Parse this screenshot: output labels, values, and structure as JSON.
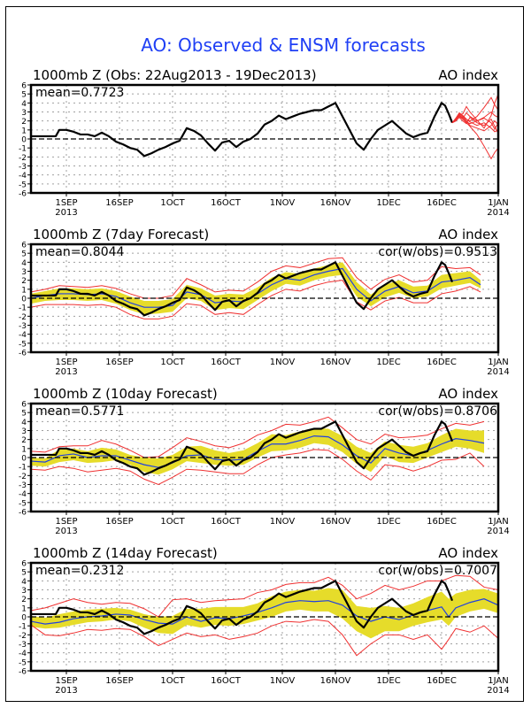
{
  "page_title": "AO: Observed & ENSM forecasts",
  "colors": {
    "title": "#1f3ff5",
    "observed": "#000000",
    "ensemble_member": "#f03030",
    "spread_band": "#e6dc2a",
    "ensemble_mean": "#2040e0",
    "bounds": "#f03030",
    "grid": "#a0a0a0"
  },
  "chart_data": [
    {
      "type": "line",
      "title": "1000mb Z (Obs: 22Aug2013 - 19Dec2013)",
      "right_label": "AO index",
      "annotation_left": "mean=0.7723",
      "annotation_right": "",
      "xlabel": "",
      "ylabel": "",
      "ylim": [
        -6,
        6
      ],
      "yticks": [
        "6",
        "5",
        "4",
        "3",
        "2",
        "1",
        "0",
        "-1",
        "-2",
        "-3",
        "-4",
        "-5",
        "-6"
      ],
      "x_domain_days": [
        0,
        132
      ],
      "x_ticks": [
        {
          "day": 10,
          "label": "1SEP",
          "sub": "2013"
        },
        {
          "day": 25,
          "label": "16SEP",
          "sub": ""
        },
        {
          "day": 40,
          "label": "1OCT",
          "sub": ""
        },
        {
          "day": 55,
          "label": "16OCT",
          "sub": ""
        },
        {
          "day": 71,
          "label": "1NOV",
          "sub": ""
        },
        {
          "day": 86,
          "label": "16NOV",
          "sub": ""
        },
        {
          "day": 101,
          "label": "1DEC",
          "sub": ""
        },
        {
          "day": 116,
          "label": "16DEC",
          "sub": ""
        },
        {
          "day": 132,
          "label": "1JAN",
          "sub": "2014"
        }
      ],
      "grid": true,
      "observed": {
        "name": "Observed AO",
        "x": [
          0,
          4,
          7,
          8,
          10,
          12,
          14,
          16,
          18,
          20,
          22,
          24,
          26,
          28,
          30,
          32,
          34,
          36,
          38,
          40,
          42,
          44,
          46,
          48,
          50,
          52,
          54,
          56,
          58,
          60,
          62,
          64,
          66,
          68,
          70,
          72,
          74,
          76,
          78,
          80,
          82,
          84,
          86,
          88,
          90,
          92,
          94,
          96,
          98,
          100,
          102,
          104,
          106,
          108,
          110,
          112,
          114,
          116,
          117,
          118,
          119
        ],
        "y": [
          0.3,
          0.3,
          0.3,
          1.0,
          1.0,
          0.8,
          0.5,
          0.5,
          0.3,
          0.7,
          0.3,
          -0.3,
          -0.6,
          -1.0,
          -1.2,
          -1.9,
          -1.6,
          -1.2,
          -0.9,
          -0.5,
          -0.2,
          1.2,
          0.9,
          0.4,
          -0.5,
          -1.3,
          -0.4,
          -0.2,
          -0.9,
          -0.3,
          0.0,
          0.6,
          1.6,
          2.0,
          2.6,
          2.2,
          2.5,
          2.8,
          3.0,
          3.2,
          3.2,
          3.6,
          4.0,
          2.5,
          1.0,
          -0.5,
          -1.2,
          0.0,
          1.0,
          1.5,
          2.0,
          1.3,
          0.6,
          0.2,
          0.5,
          0.7,
          2.5,
          4.0,
          3.7,
          2.8,
          1.8
        ]
      },
      "ensemble_members": [
        {
          "x": [
            119,
            120,
            121,
            122,
            123,
            124,
            126,
            128,
            130,
            131,
            132
          ],
          "y": [
            1.8,
            2.2,
            2.7,
            2.3,
            2.9,
            2.5,
            2.0,
            2.4,
            3.0,
            2.6,
            2.4
          ]
        },
        {
          "x": [
            119,
            120,
            121,
            122,
            123,
            124,
            126,
            128,
            130,
            131,
            132
          ],
          "y": [
            1.8,
            2.1,
            2.6,
            2.4,
            2.2,
            1.9,
            1.5,
            1.8,
            1.2,
            0.8,
            1.0
          ]
        },
        {
          "x": [
            119,
            120,
            121,
            122,
            123,
            124,
            126,
            128,
            130,
            131,
            132
          ],
          "y": [
            1.8,
            2.0,
            2.8,
            2.5,
            2.0,
            1.5,
            1.2,
            0.9,
            1.5,
            2.0,
            1.6
          ]
        },
        {
          "x": [
            119,
            120,
            121,
            122,
            123,
            124,
            126,
            128,
            130,
            131,
            132
          ],
          "y": [
            1.8,
            2.3,
            2.9,
            2.6,
            2.2,
            2.0,
            2.5,
            3.5,
            4.6,
            3.8,
            3.2
          ]
        },
        {
          "x": [
            119,
            120,
            121,
            122,
            123,
            124,
            126,
            128,
            130,
            131,
            132
          ],
          "y": [
            1.8,
            2.2,
            2.5,
            2.2,
            1.8,
            1.4,
            0.5,
            -0.8,
            -2.2,
            -1.5,
            -1.0
          ]
        },
        {
          "x": [
            119,
            120,
            121,
            122,
            123,
            124,
            126,
            128,
            130,
            131,
            132
          ],
          "y": [
            1.8,
            2.0,
            2.4,
            2.0,
            1.7,
            2.4,
            1.8,
            1.5,
            2.2,
            1.4,
            0.6
          ]
        },
        {
          "x": [
            119,
            120,
            121,
            122,
            123,
            124,
            126,
            128,
            130,
            131,
            132
          ],
          "y": [
            1.8,
            2.1,
            2.7,
            2.8,
            3.6,
            3.0,
            2.1,
            1.2,
            2.6,
            4.0,
            5.0
          ]
        },
        {
          "x": [
            119,
            120,
            121,
            122,
            123,
            124,
            126,
            128,
            130,
            131,
            132
          ],
          "y": [
            1.8,
            2.2,
            2.6,
            2.3,
            1.9,
            1.7,
            2.0,
            2.3,
            1.8,
            1.1,
            1.8
          ]
        }
      ]
    },
    {
      "type": "line",
      "title": "1000mb Z (7day Forecast)",
      "right_label": "AO index",
      "annotation_left": "mean=0.8044",
      "annotation_right": "cor(w/obs)=0.9513",
      "ylim": [
        -6,
        6
      ],
      "x_domain_days": [
        0,
        132
      ],
      "forecast": {
        "x": [
          0,
          4,
          8,
          12,
          16,
          20,
          24,
          28,
          32,
          36,
          40,
          44,
          48,
          52,
          56,
          60,
          64,
          68,
          72,
          76,
          80,
          84,
          88,
          92,
          96,
          100,
          104,
          108,
          112,
          116,
          120,
          124,
          127
        ],
        "mean": [
          0.0,
          0.3,
          0.5,
          0.5,
          0.4,
          0.5,
          0.2,
          -0.5,
          -1.0,
          -1.0,
          -0.8,
          0.7,
          0.4,
          -0.5,
          -0.3,
          -0.4,
          0.5,
          1.5,
          2.2,
          2.0,
          2.6,
          3.0,
          3.3,
          1.0,
          -0.3,
          0.8,
          1.3,
          0.6,
          0.8,
          1.8,
          2.0,
          2.3,
          1.5
        ],
        "lower": [
          -0.6,
          -0.3,
          -0.2,
          -0.2,
          -0.3,
          -0.2,
          -0.6,
          -1.3,
          -1.8,
          -1.7,
          -1.5,
          0.0,
          -0.3,
          -1.3,
          -1.1,
          -1.2,
          -0.2,
          0.8,
          1.6,
          1.4,
          2.0,
          2.4,
          2.6,
          0.2,
          -0.9,
          0.1,
          0.6,
          0.0,
          0.2,
          1.1,
          1.4,
          1.7,
          1.1
        ],
        "upper": [
          0.5,
          0.8,
          1.1,
          1.1,
          1.0,
          1.1,
          0.8,
          0.2,
          -0.3,
          -0.3,
          -0.1,
          1.5,
          1.1,
          0.3,
          0.5,
          0.4,
          1.2,
          2.3,
          2.9,
          2.7,
          3.3,
          3.7,
          4.0,
          1.8,
          0.4,
          1.5,
          2.0,
          1.3,
          1.4,
          2.6,
          2.8,
          3.0,
          2.0
        ],
        "min": [
          -1.0,
          -0.7,
          -0.7,
          -0.7,
          -0.8,
          -0.7,
          -1.0,
          -1.8,
          -2.3,
          -2.3,
          -2.0,
          -0.6,
          -0.8,
          -1.8,
          -1.6,
          -1.8,
          -0.7,
          0.3,
          1.0,
          0.8,
          1.4,
          1.8,
          2.0,
          -0.4,
          -1.3,
          -0.3,
          0.1,
          -0.5,
          -0.5,
          0.5,
          0.8,
          1.3,
          0.7
        ],
        "max": [
          0.7,
          1.0,
          1.4,
          1.3,
          1.2,
          1.4,
          1.1,
          0.5,
          0.0,
          0.0,
          0.3,
          2.2,
          1.5,
          0.7,
          0.9,
          0.8,
          1.8,
          3.0,
          3.6,
          3.4,
          3.9,
          4.4,
          4.5,
          2.3,
          1.0,
          2.1,
          2.6,
          1.8,
          2.0,
          3.5,
          3.3,
          3.4,
          2.6
        ]
      }
    },
    {
      "type": "line",
      "title": "1000mb Z (10day Forecast)",
      "right_label": "AO index",
      "annotation_left": "mean=0.5771",
      "annotation_right": "cor(w/obs)=0.8706",
      "ylim": [
        -6,
        6
      ],
      "x_domain_days": [
        0,
        132
      ],
      "forecast": {
        "x": [
          0,
          4,
          8,
          12,
          16,
          20,
          24,
          28,
          32,
          36,
          40,
          44,
          48,
          52,
          56,
          60,
          64,
          68,
          72,
          76,
          80,
          84,
          88,
          92,
          96,
          100,
          104,
          108,
          112,
          116,
          120,
          124,
          128
        ],
        "mean": [
          -0.4,
          -0.5,
          0.2,
          0.4,
          0.0,
          0.2,
          0.2,
          -0.3,
          -0.8,
          -1.1,
          -0.6,
          0.2,
          0.3,
          -0.2,
          -0.3,
          -0.2,
          0.7,
          1.5,
          1.5,
          1.9,
          2.4,
          2.3,
          1.4,
          0.2,
          -0.6,
          1.0,
          0.5,
          0.2,
          0.8,
          1.5,
          2.1,
          1.9,
          1.6
        ],
        "lower": [
          -0.9,
          -1.0,
          -0.5,
          -0.3,
          -0.6,
          -0.5,
          -0.3,
          -0.8,
          -1.6,
          -1.9,
          -1.3,
          -0.4,
          -0.6,
          -0.8,
          -0.9,
          -0.8,
          0.0,
          0.7,
          0.8,
          1.1,
          1.6,
          1.4,
          0.6,
          -0.7,
          -1.6,
          0.2,
          -0.5,
          -0.6,
          0.0,
          0.6,
          1.2,
          1.0,
          0.5
        ],
        "upper": [
          0.0,
          -0.1,
          0.9,
          1.0,
          0.7,
          1.1,
          0.9,
          0.3,
          0.0,
          -0.1,
          0.3,
          1.2,
          1.3,
          0.8,
          0.5,
          0.8,
          1.6,
          2.6,
          2.5,
          2.9,
          3.3,
          3.2,
          2.4,
          1.2,
          0.5,
          1.8,
          1.4,
          1.2,
          1.6,
          2.5,
          3.2,
          3.0,
          3.0
        ],
        "min": [
          -1.3,
          -1.4,
          -1.0,
          -1.2,
          -1.6,
          -1.4,
          -1.2,
          -1.5,
          -2.4,
          -3.0,
          -2.2,
          -1.3,
          -1.4,
          -1.6,
          -1.8,
          -1.8,
          -0.8,
          0.0,
          0.3,
          0.5,
          0.9,
          0.8,
          -0.2,
          -1.5,
          -2.5,
          -0.8,
          -1.0,
          -1.5,
          -1.0,
          -0.3,
          -0.2,
          0.5,
          -1.0
        ],
        "max": [
          0.7,
          0.6,
          1.2,
          1.3,
          1.3,
          1.9,
          1.5,
          0.8,
          0.0,
          0.1,
          1.1,
          2.2,
          1.8,
          1.3,
          1.1,
          1.6,
          2.5,
          3.0,
          3.7,
          3.6,
          4.0,
          4.5,
          3.3,
          2.0,
          1.5,
          2.6,
          2.2,
          2.3,
          2.5,
          3.2,
          3.8,
          3.6,
          4.0
        ]
      }
    },
    {
      "type": "line",
      "title": "1000mb Z (14day Forecast)",
      "right_label": "AO index",
      "annotation_left": "mean=0.2312",
      "annotation_right": "cor(w/obs)=0.7007",
      "ylim": [
        -6,
        6
      ],
      "x_domain_days": [
        0,
        132
      ],
      "forecast": {
        "x": [
          0,
          4,
          8,
          12,
          16,
          20,
          24,
          28,
          32,
          36,
          40,
          44,
          48,
          52,
          56,
          60,
          64,
          68,
          72,
          76,
          80,
          84,
          88,
          92,
          96,
          100,
          104,
          108,
          112,
          116,
          118,
          120,
          124,
          128,
          132
        ],
        "mean": [
          -0.5,
          -0.8,
          -0.6,
          -0.2,
          0.0,
          0.1,
          0.3,
          0.2,
          -0.3,
          -0.7,
          -0.8,
          0.0,
          -0.5,
          -0.1,
          -0.2,
          0.1,
          0.5,
          1.0,
          1.6,
          1.8,
          1.7,
          1.8,
          1.3,
          0.1,
          -0.5,
          0.0,
          -0.3,
          0.2,
          0.7,
          1.1,
          0.0,
          1.0,
          1.6,
          2.0,
          1.3
        ],
        "lower": [
          -1.1,
          -1.3,
          -1.2,
          -0.9,
          -0.6,
          -0.5,
          -0.3,
          -0.5,
          -1.2,
          -1.8,
          -1.9,
          -0.9,
          -1.2,
          -0.9,
          -1.0,
          -0.8,
          -0.4,
          0.0,
          0.6,
          0.8,
          0.6,
          0.6,
          -0.2,
          -1.6,
          -2.4,
          -1.6,
          -1.6,
          -1.0,
          -0.6,
          -0.3,
          -1.0,
          0.0,
          0.6,
          0.9,
          0.4
        ],
        "upper": [
          0.1,
          -0.1,
          0.3,
          0.6,
          0.8,
          0.9,
          1.0,
          0.8,
          0.3,
          0.0,
          0.1,
          0.9,
          0.9,
          1.1,
          1.1,
          1.1,
          1.5,
          2.3,
          2.8,
          3.0,
          2.9,
          3.2,
          3.0,
          1.2,
          1.0,
          1.2,
          1.0,
          1.5,
          2.2,
          2.8,
          2.0,
          2.6,
          3.0,
          3.1,
          2.6
        ],
        "min": [
          -0.9,
          -2.0,
          -2.1,
          -1.8,
          -1.4,
          -1.5,
          -1.3,
          -1.4,
          -2.2,
          -3.2,
          -2.5,
          -1.8,
          -2.2,
          -2.0,
          -2.5,
          -2.2,
          -1.8,
          -1.0,
          -0.5,
          -0.6,
          -0.3,
          -0.5,
          -2.0,
          -4.3,
          -3.0,
          -2.0,
          -2.0,
          -2.5,
          -2.0,
          -3.6,
          -2.5,
          -1.3,
          -1.7,
          -1.0,
          -2.4
        ],
        "max": [
          0.7,
          1.0,
          1.5,
          2.0,
          1.6,
          1.4,
          1.6,
          1.5,
          0.9,
          0.0,
          1.9,
          2.0,
          1.6,
          1.8,
          1.9,
          2.0,
          2.7,
          3.0,
          3.6,
          3.8,
          3.8,
          4.4,
          3.5,
          2.0,
          2.6,
          3.5,
          3.0,
          3.4,
          4.0,
          4.0,
          4.3,
          4.6,
          4.5,
          3.3,
          3.0
        ]
      }
    }
  ]
}
